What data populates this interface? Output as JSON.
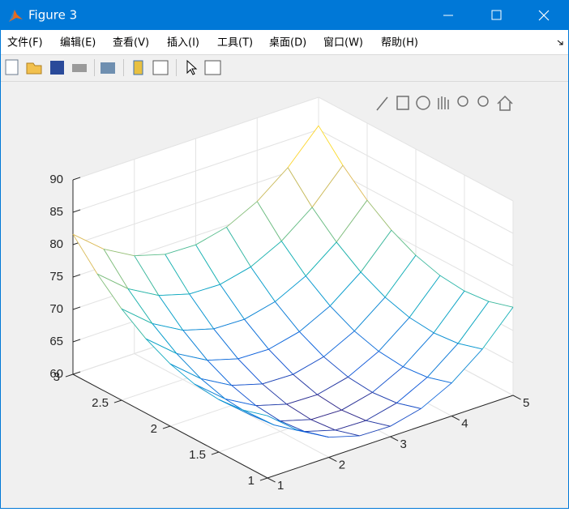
{
  "window": {
    "title": "Figure 3",
    "menu": [
      "文件(F)",
      "编辑(E)",
      "查看(V)",
      "插入(I)",
      "工具(T)",
      "桌面(D)",
      "窗口(W)",
      "帮助(H)"
    ]
  },
  "chart_data": {
    "type": "mesh",
    "colormap": "parula",
    "grid": true,
    "x": [
      1,
      1.5,
      2,
      2.5,
      3,
      3.5,
      4,
      4.5,
      5
    ],
    "y": [
      1,
      1.25,
      1.5,
      1.75,
      2,
      2.25,
      2.5,
      2.75,
      3
    ],
    "z": [
      [
        69.6,
        65.73,
        63.1,
        61.73,
        61.6,
        62.73,
        65.1,
        68.73,
        73.6
      ],
      [
        68.48,
        64.6,
        61.98,
        60.6,
        60.48,
        61.6,
        63.98,
        67.6,
        72.48
      ],
      [
        68.1,
        64.23,
        61.6,
        60.23,
        60.1,
        61.23,
        63.6,
        67.23,
        72.1
      ],
      [
        68.48,
        64.6,
        61.98,
        60.6,
        60.48,
        61.6,
        63.98,
        67.6,
        72.48
      ],
      [
        69.6,
        65.73,
        63.1,
        61.73,
        61.6,
        62.73,
        65.1,
        68.73,
        73.6
      ],
      [
        71.48,
        67.6,
        64.98,
        63.6,
        63.48,
        64.6,
        66.98,
        70.6,
        75.48
      ],
      [
        74.1,
        70.23,
        67.6,
        66.23,
        66.1,
        67.23,
        69.6,
        73.23,
        78.1
      ],
      [
        77.48,
        73.6,
        70.98,
        69.6,
        69.48,
        70.6,
        72.98,
        76.6,
        81.48
      ],
      [
        81.6,
        77.73,
        75.1,
        73.73,
        73.6,
        74.73,
        77.1,
        80.73,
        85.6
      ]
    ],
    "xlim": [
      1,
      5
    ],
    "xticks": [
      1,
      2,
      3,
      4,
      5
    ],
    "ylim": [
      1,
      3
    ],
    "yticks": [
      1,
      1.5,
      2,
      2.5,
      3
    ],
    "zlim": [
      60,
      90
    ],
    "zticks": [
      60,
      65,
      70,
      75,
      80,
      85,
      90
    ]
  }
}
